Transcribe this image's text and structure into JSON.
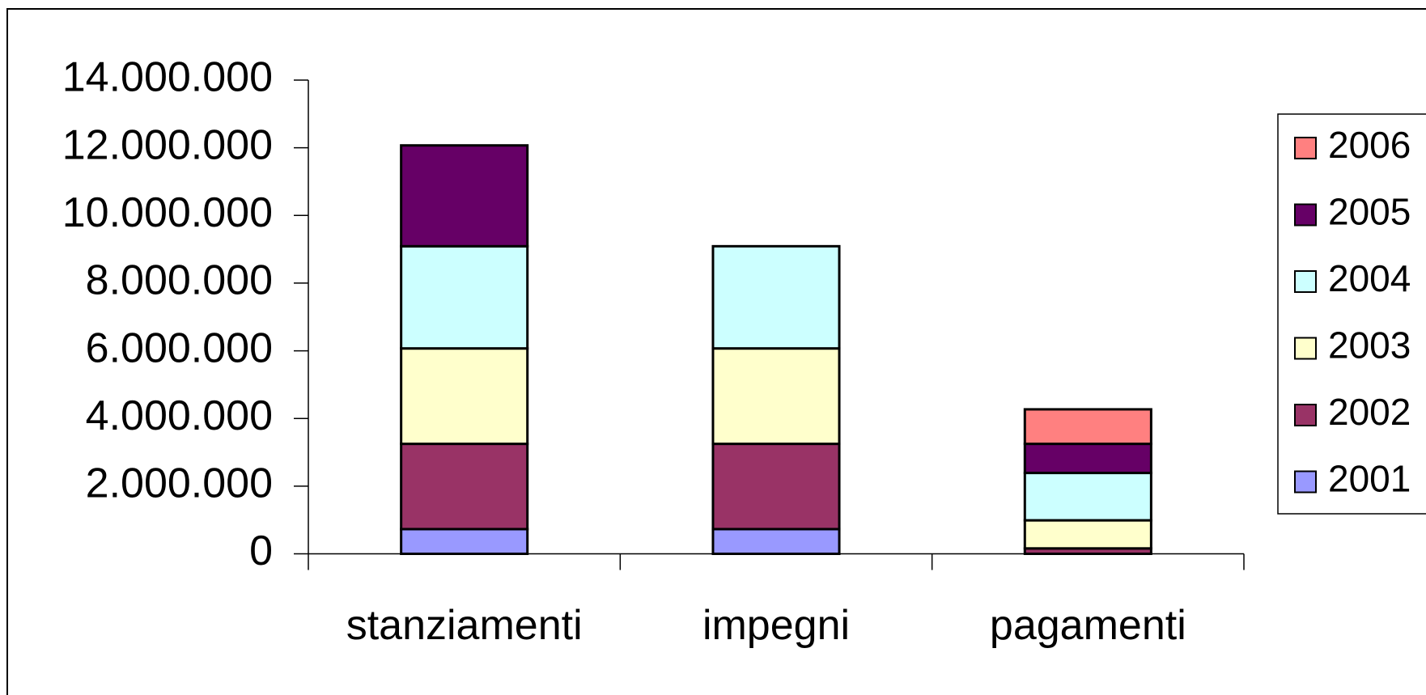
{
  "chart_data": {
    "type": "stacked_bar",
    "categories": [
      "stanziamenti",
      "impegni",
      "pagamenti"
    ],
    "series": [
      {
        "name": "2001",
        "color": "#9999ff",
        "values": [
          730000,
          730000,
          0
        ]
      },
      {
        "name": "2002",
        "color": "#993366",
        "values": [
          2520000,
          2520000,
          160000
        ]
      },
      {
        "name": "2003",
        "color": "#ffffcc",
        "values": [
          2820000,
          2820000,
          830000
        ]
      },
      {
        "name": "2004",
        "color": "#ccffff",
        "values": [
          3020000,
          3020000,
          1400000
        ]
      },
      {
        "name": "2005",
        "color": "#660066",
        "values": [
          2980000,
          0,
          860000
        ]
      },
      {
        "name": "2006",
        "color": "#ff8080",
        "values": [
          0,
          0,
          1020000
        ]
      }
    ],
    "ylim": [
      0,
      14000000
    ],
    "yticks": [
      0,
      {
        "value": 2000000,
        "label": "2.000.000"
      },
      {
        "value": 4000000,
        "label": "4.000.000"
      },
      {
        "value": 6000000,
        "label": "6.000.000"
      },
      {
        "value": 8000000,
        "label": "8.000.000"
      },
      {
        "value": 10000000,
        "label": "10.000.000"
      },
      {
        "value": 12000000,
        "label": "12.000.000"
      },
      {
        "value": 14000000,
        "label": "14.000.000"
      }
    ],
    "legend": "right"
  }
}
